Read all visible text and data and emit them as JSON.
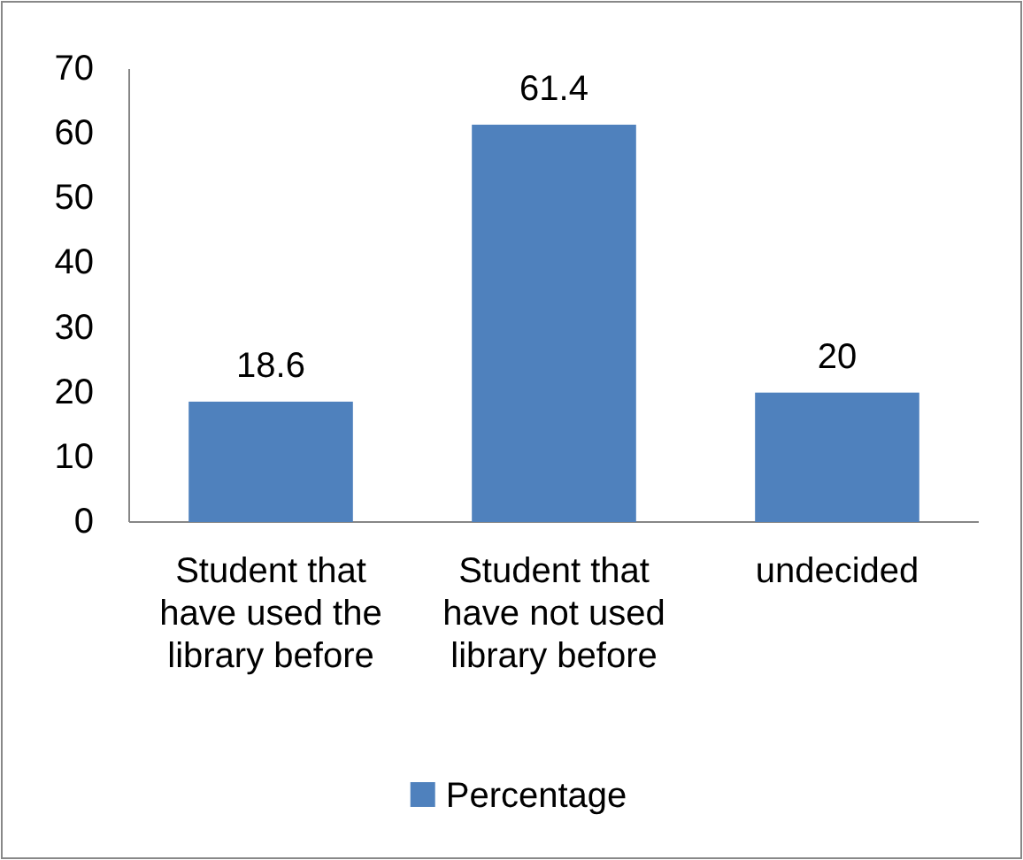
{
  "chart_data": {
    "type": "bar",
    "categories": [
      "Student that have used the library before",
      "Student that have not used library before",
      "undecided"
    ],
    "series": [
      {
        "name": "Percentage",
        "color": "#4f81bd",
        "values": [
          18.6,
          61.4,
          20
        ]
      }
    ],
    "ylim": [
      0,
      70
    ],
    "yticks": [
      0,
      10,
      20,
      30,
      40,
      50,
      60,
      70
    ],
    "data_labels": true,
    "grid": false,
    "legend": "bottom"
  }
}
